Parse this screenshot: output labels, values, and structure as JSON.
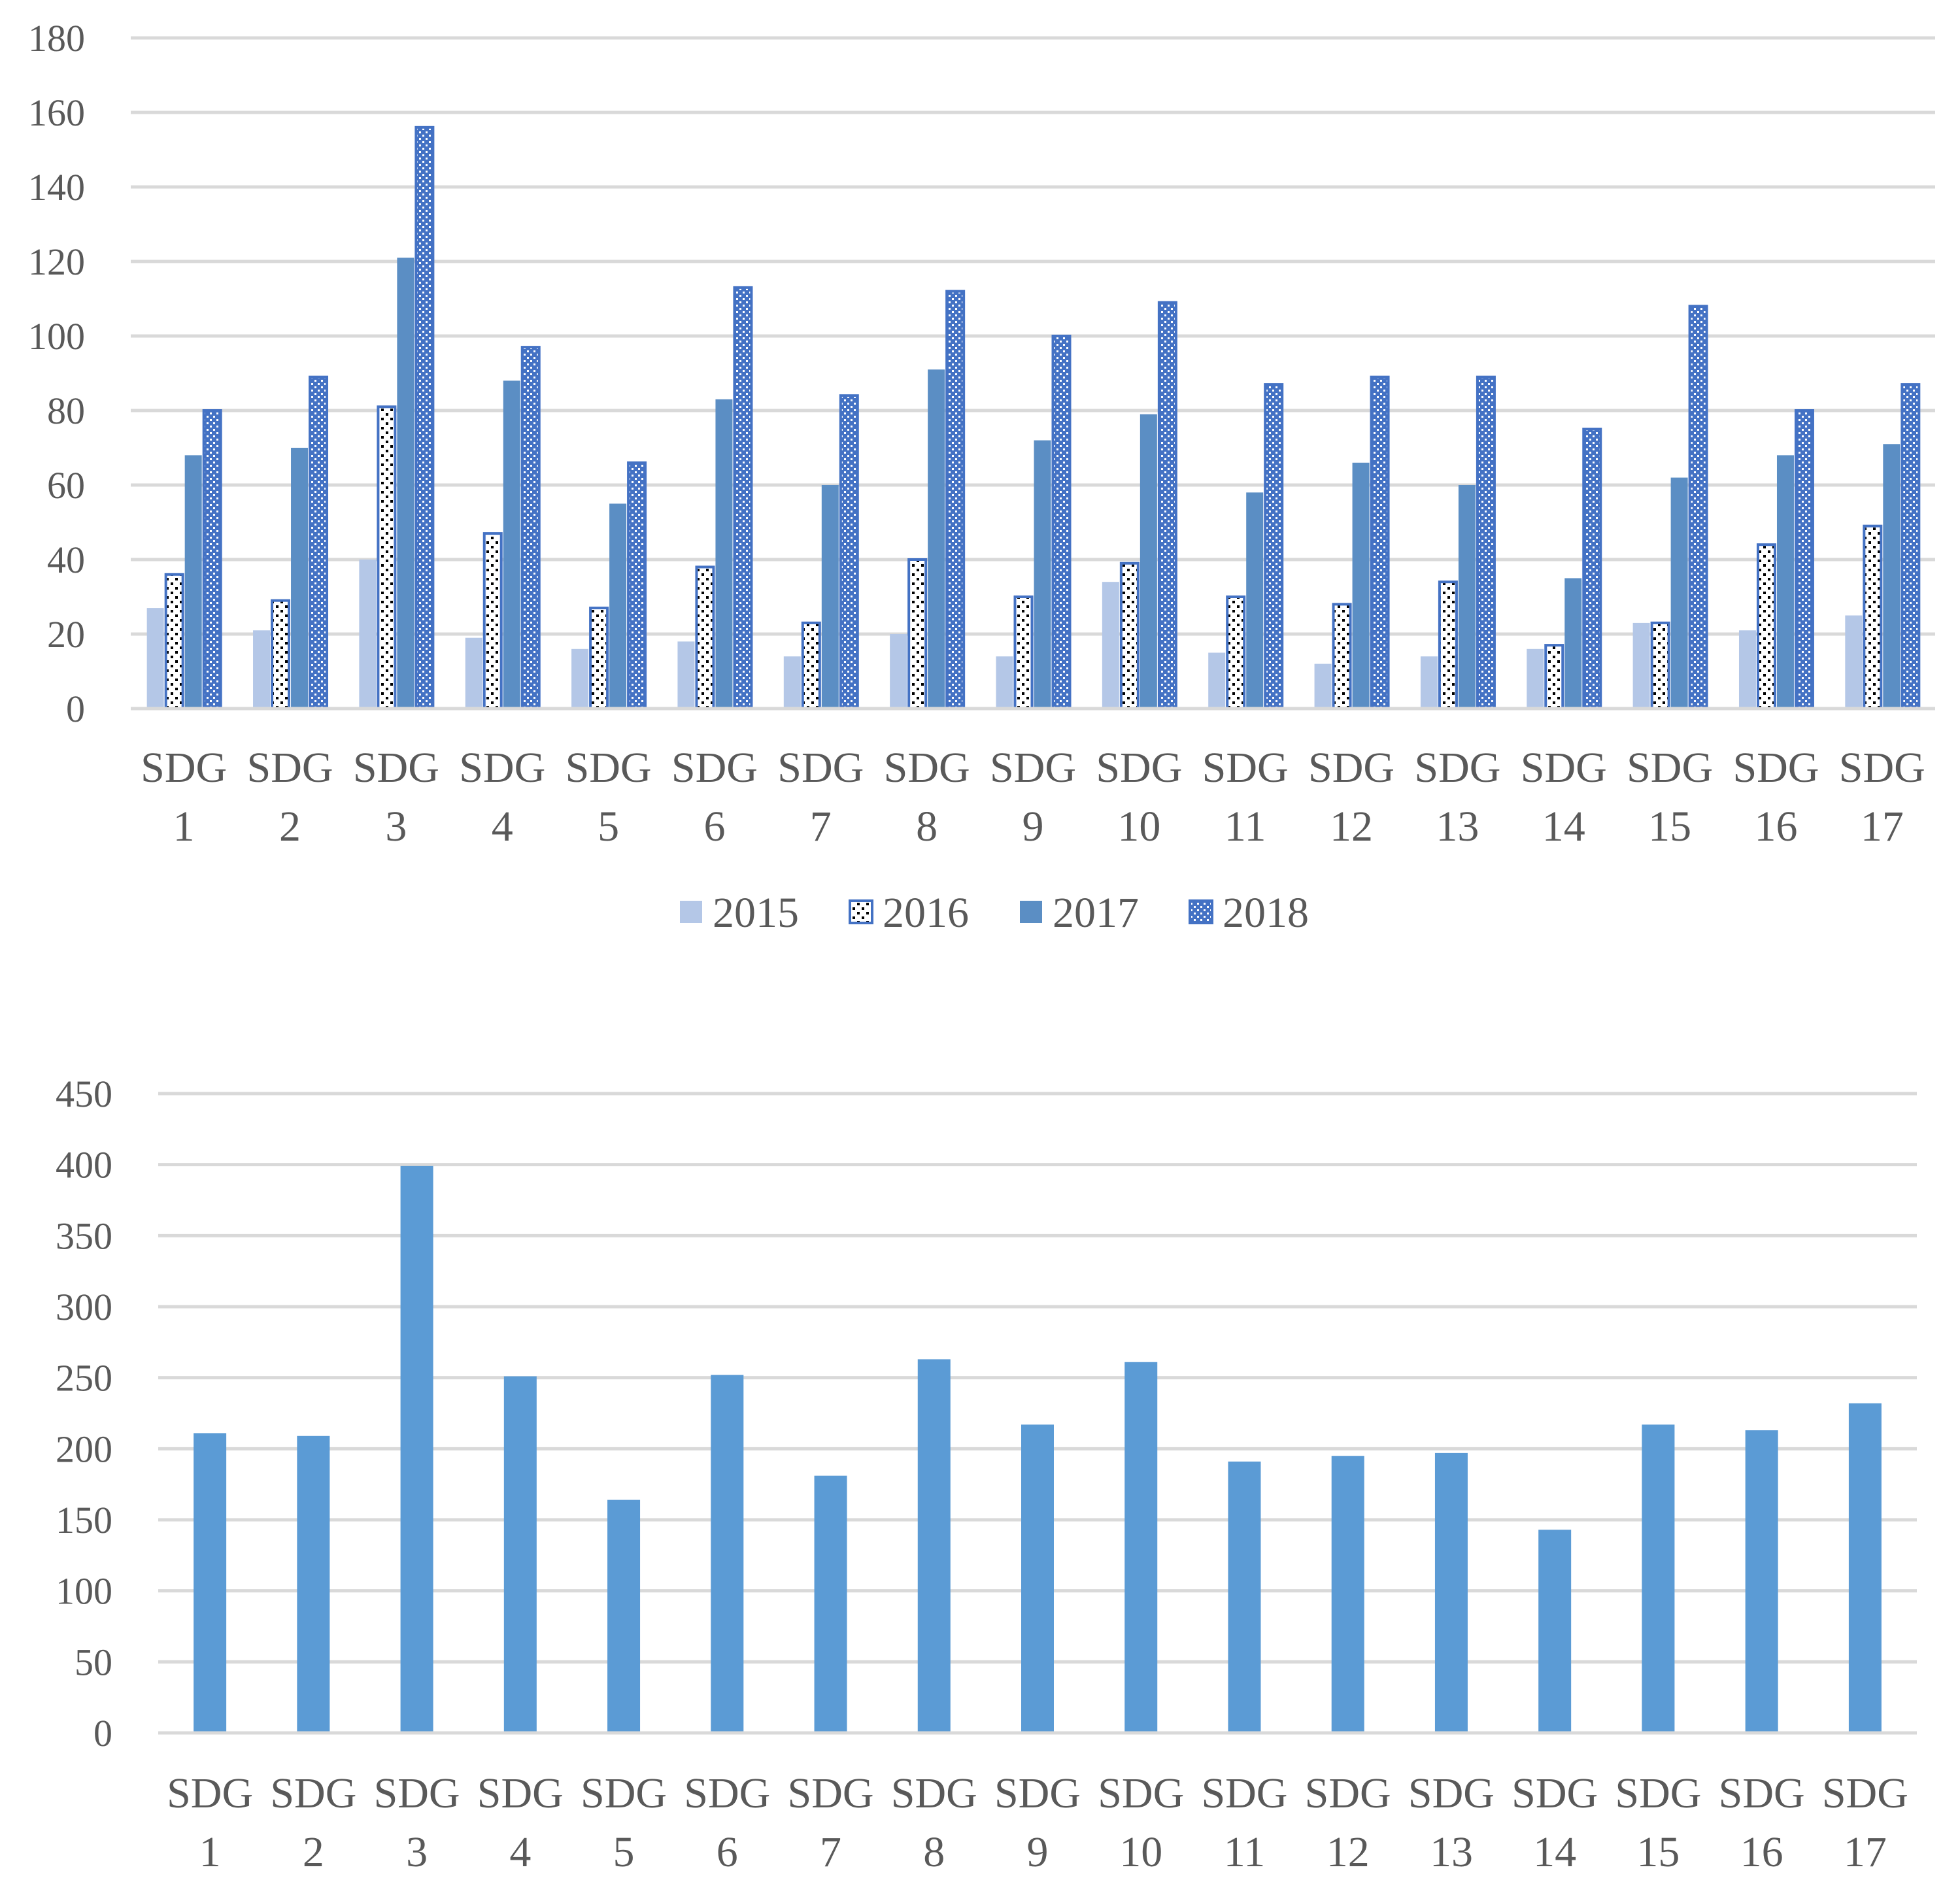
{
  "colors": {
    "s2015": "#b4c7e7",
    "s2016_border": "#4472c4",
    "s2017": "#5b8ec4",
    "s2018": "#4472c4",
    "bottom_bars": "#5b9bd5",
    "grid": "#d9d9d9",
    "text": "#595959"
  },
  "chart_data": [
    {
      "type": "bar",
      "title": "",
      "xlabel": "",
      "ylabel": "",
      "ylim": [
        0,
        180
      ],
      "y_ticks": [
        0,
        20,
        40,
        60,
        80,
        100,
        120,
        140,
        160,
        180
      ],
      "grid": true,
      "legend_position": "bottom",
      "categories": [
        [
          "SDG",
          "1"
        ],
        [
          "SDG",
          "2"
        ],
        [
          "SDG",
          "3"
        ],
        [
          "SDG",
          "4"
        ],
        [
          "SDG",
          "5"
        ],
        [
          "SDG",
          "6"
        ],
        [
          "SDG",
          "7"
        ],
        [
          "SDG",
          "8"
        ],
        [
          "SDG",
          "9"
        ],
        [
          "SDG",
          "10"
        ],
        [
          "SDG",
          "11"
        ],
        [
          "SDG",
          "12"
        ],
        [
          "SDG",
          "13"
        ],
        [
          "SDG",
          "14"
        ],
        [
          "SDG",
          "15"
        ],
        [
          "SDG",
          "16"
        ],
        [
          "SDG",
          "17"
        ]
      ],
      "series": [
        {
          "name": "2015",
          "values": [
            27,
            21,
            40,
            19,
            16,
            18,
            14,
            20,
            14,
            34,
            15,
            12,
            14,
            16,
            23,
            21,
            25
          ]
        },
        {
          "name": "2016",
          "values": [
            36,
            29,
            81,
            47,
            27,
            38,
            23,
            40,
            30,
            39,
            30,
            28,
            34,
            17,
            23,
            44,
            49
          ]
        },
        {
          "name": "2017",
          "values": [
            68,
            70,
            121,
            88,
            55,
            83,
            60,
            91,
            72,
            79,
            58,
            66,
            60,
            35,
            62,
            68,
            71
          ]
        },
        {
          "name": "2018",
          "values": [
            80,
            89,
            156,
            97,
            66,
            113,
            84,
            112,
            100,
            109,
            87,
            89,
            89,
            75,
            108,
            80,
            87
          ]
        }
      ]
    },
    {
      "type": "bar",
      "title": "",
      "xlabel": "",
      "ylabel": "",
      "ylim": [
        0,
        450
      ],
      "y_ticks": [
        0,
        50,
        100,
        150,
        200,
        250,
        300,
        350,
        400,
        450
      ],
      "grid": true,
      "categories": [
        [
          "SDG",
          "1"
        ],
        [
          "SDG",
          "2"
        ],
        [
          "SDG",
          "3"
        ],
        [
          "SDG",
          "4"
        ],
        [
          "SDG",
          "5"
        ],
        [
          "SDG",
          "6"
        ],
        [
          "SDG",
          "7"
        ],
        [
          "SDG",
          "8"
        ],
        [
          "SDG",
          "9"
        ],
        [
          "SDG",
          "10"
        ],
        [
          "SDG",
          "11"
        ],
        [
          "SDG",
          "12"
        ],
        [
          "SDG",
          "13"
        ],
        [
          "SDG",
          "14"
        ],
        [
          "SDG",
          "15"
        ],
        [
          "SDG",
          "16"
        ],
        [
          "SDG",
          "17"
        ]
      ],
      "values": [
        211,
        209,
        399,
        251,
        164,
        252,
        181,
        263,
        217,
        261,
        191,
        195,
        197,
        143,
        217,
        213,
        232
      ]
    }
  ]
}
